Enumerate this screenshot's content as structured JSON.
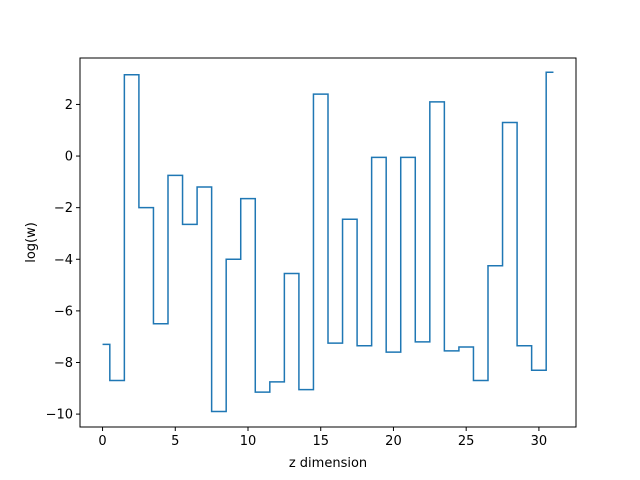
{
  "chart_data": {
    "type": "line",
    "drawstyle": "steps-mid",
    "xlabel": "z dimension",
    "ylabel": "log(w)",
    "xlim": [
      -1.55,
      32.55
    ],
    "ylim": [
      -10.5,
      3.8
    ],
    "xticks": [
      0,
      5,
      10,
      15,
      20,
      25,
      30
    ],
    "xtick_labels": [
      "0",
      "5",
      "10",
      "15",
      "20",
      "25",
      "30"
    ],
    "yticks": [
      -10,
      -8,
      -6,
      -4,
      -2,
      0,
      2
    ],
    "ytick_labels": [
      "−10",
      "−8",
      "−6",
      "−4",
      "−2",
      "0",
      "2"
    ],
    "grid": false,
    "series": [
      {
        "color": "#1f77b4",
        "x": [
          0,
          1,
          2,
          3,
          4,
          5,
          6,
          7,
          8,
          9,
          10,
          11,
          12,
          13,
          14,
          15,
          16,
          17,
          18,
          19,
          20,
          21,
          22,
          23,
          24,
          25,
          26,
          27,
          28,
          29,
          30,
          31
        ],
        "values": [
          -7.3,
          -8.7,
          3.15,
          -2.0,
          -6.5,
          -0.75,
          -2.65,
          -1.2,
          -9.9,
          -4.0,
          -1.65,
          -9.15,
          -8.75,
          -4.55,
          -9.05,
          2.4,
          -7.25,
          -2.45,
          -7.35,
          -0.05,
          -7.6,
          -0.05,
          -7.2,
          2.1,
          -7.55,
          -7.4,
          -8.7,
          -4.25,
          1.3,
          -7.35,
          -8.3,
          3.25
        ]
      }
    ]
  }
}
